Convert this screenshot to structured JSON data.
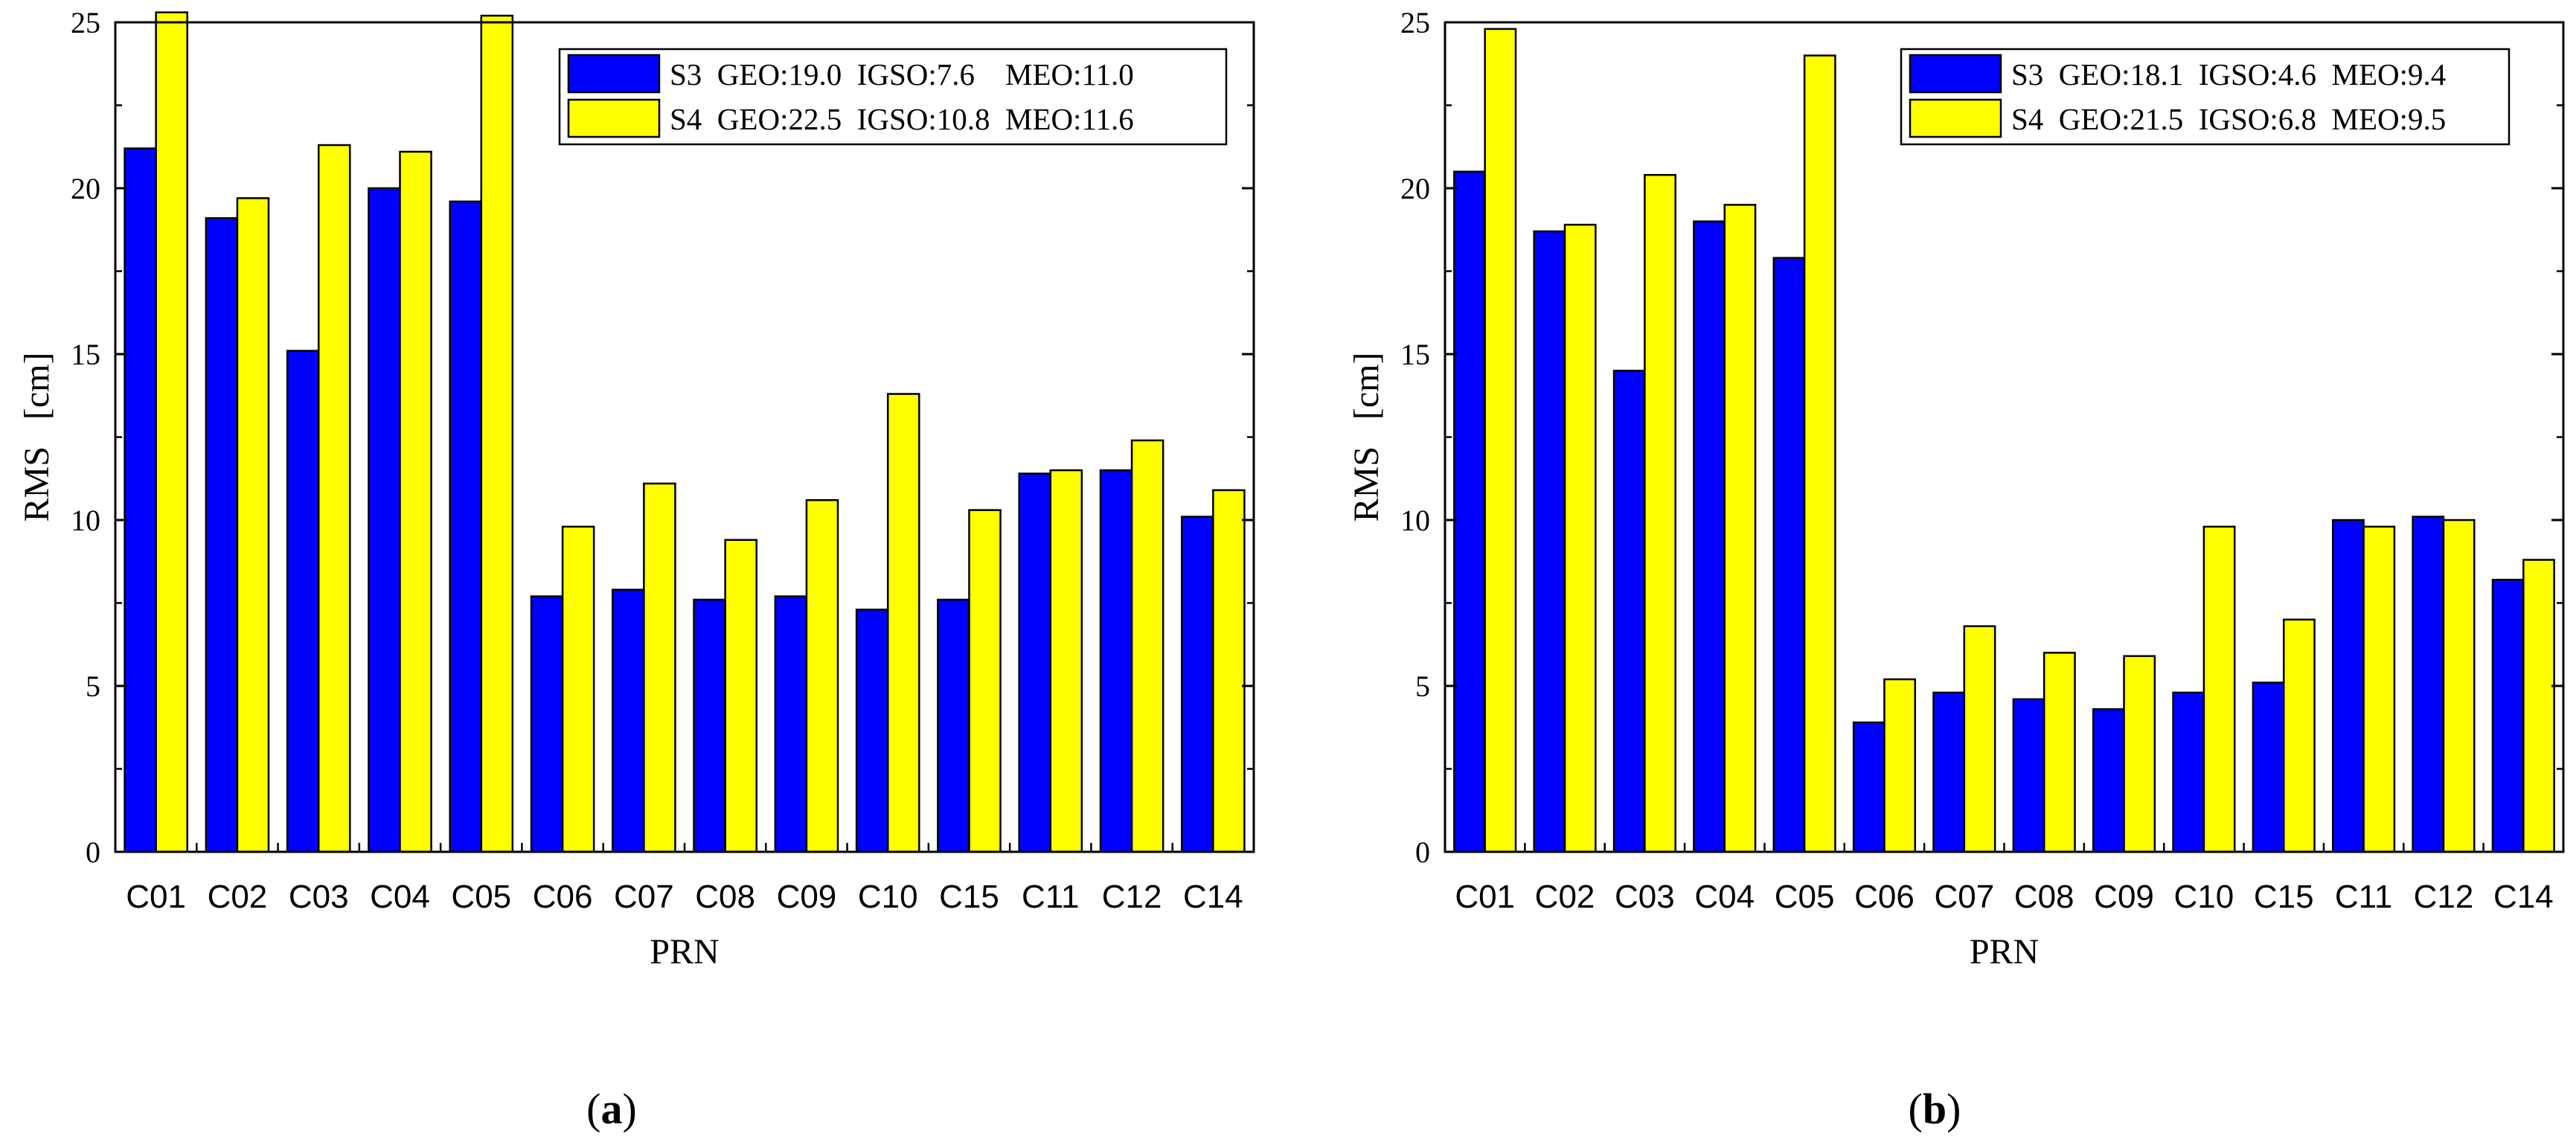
{
  "colors": {
    "s3": "#0000ff",
    "s4": "#ffff00",
    "axis": "#000000"
  },
  "chart_data": [
    {
      "type": "bar",
      "panel": "a",
      "panel_label": {
        "open": "(",
        "letter": "a",
        "close": ")"
      },
      "xlabel": "PRN",
      "ylabel": "RMS   [cm]",
      "ylim": [
        0,
        25
      ],
      "yticks": [
        0,
        5,
        10,
        15,
        20,
        25
      ],
      "categories": [
        "C01",
        "C02",
        "C03",
        "C04",
        "C05",
        "C06",
        "C07",
        "C08",
        "C09",
        "C10",
        "C15",
        "C11",
        "C12",
        "C14"
      ],
      "series": [
        {
          "name": "S3",
          "legend": "S3  GEO:19.0  IGSO:7.6    MEO:11.0",
          "values": [
            21.2,
            19.1,
            15.1,
            20.0,
            19.6,
            7.7,
            7.9,
            7.6,
            7.7,
            7.3,
            7.6,
            11.4,
            11.5,
            10.1
          ]
        },
        {
          "name": "S4",
          "legend": "S4  GEO:22.5  IGSO:10.8  MEO:11.6",
          "values": [
            25.3,
            19.7,
            21.3,
            21.1,
            25.2,
            9.8,
            11.1,
            9.4,
            10.6,
            13.8,
            10.3,
            11.5,
            12.4,
            10.9
          ]
        }
      ]
    },
    {
      "type": "bar",
      "panel": "b",
      "panel_label": {
        "open": "(",
        "letter": "b",
        "close": ")"
      },
      "xlabel": "PRN",
      "ylabel": "RMS   [cm]",
      "ylim": [
        0,
        25
      ],
      "yticks": [
        0,
        5,
        10,
        15,
        20,
        25
      ],
      "categories": [
        "C01",
        "C02",
        "C03",
        "C04",
        "C05",
        "C06",
        "C07",
        "C08",
        "C09",
        "C10",
        "C15",
        "C11",
        "C12",
        "C14"
      ],
      "series": [
        {
          "name": "S3",
          "legend": "S3  GEO:18.1  IGSO:4.6  MEO:9.4",
          "values": [
            20.5,
            18.7,
            14.5,
            19.0,
            17.9,
            3.9,
            4.8,
            4.6,
            4.3,
            4.8,
            5.1,
            10.0,
            10.1,
            8.2
          ]
        },
        {
          "name": "S4",
          "legend": "S4  GEO:21.5  IGSO:6.8  MEO:9.5",
          "values": [
            24.8,
            18.9,
            20.4,
            19.5,
            24.0,
            5.2,
            6.8,
            6.0,
            5.9,
            9.8,
            7.0,
            9.8,
            10.0,
            8.8
          ]
        }
      ]
    }
  ]
}
